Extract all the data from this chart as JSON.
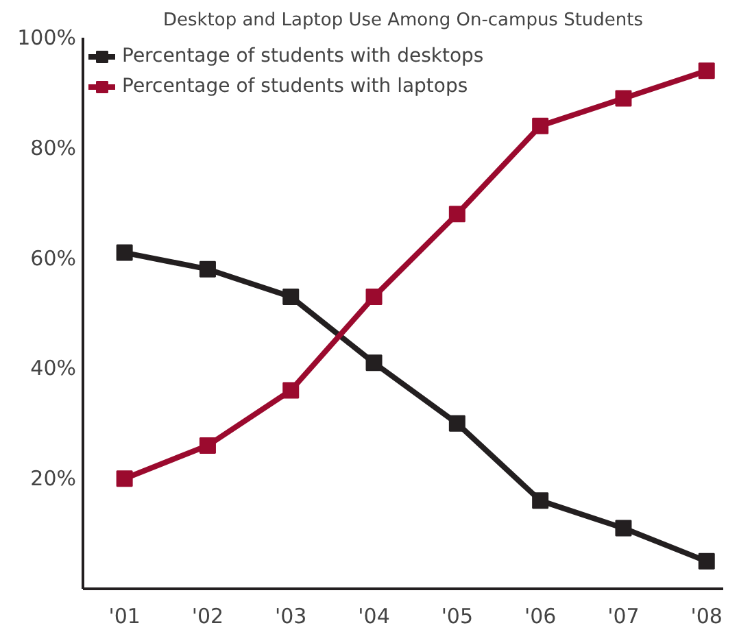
{
  "chart_data": {
    "type": "line",
    "title": "Desktop and Laptop Use Among On-campus Students",
    "categories": [
      "'01",
      "'02",
      "'03",
      "'04",
      "'05",
      "'06",
      "'07",
      "'08"
    ],
    "series": [
      {
        "name": "Percentage of students with desktops",
        "color": "#231f20",
        "values": [
          61,
          58,
          53,
          41,
          30,
          16,
          11,
          5
        ]
      },
      {
        "name": "Percentage of students with laptops",
        "color": "#9b0a2e",
        "values": [
          20,
          26,
          36,
          53,
          68,
          84,
          89,
          94
        ]
      }
    ],
    "ylim": [
      0,
      100
    ],
    "yticks": [
      {
        "value": 20,
        "label": "20%"
      },
      {
        "value": 40,
        "label": "40%"
      },
      {
        "value": 60,
        "label": "60%"
      },
      {
        "value": 80,
        "label": "80%"
      },
      {
        "value": 100,
        "label": "100%"
      }
    ],
    "grid": false,
    "legend": "top left",
    "marker": "square",
    "line_style": "solid"
  }
}
